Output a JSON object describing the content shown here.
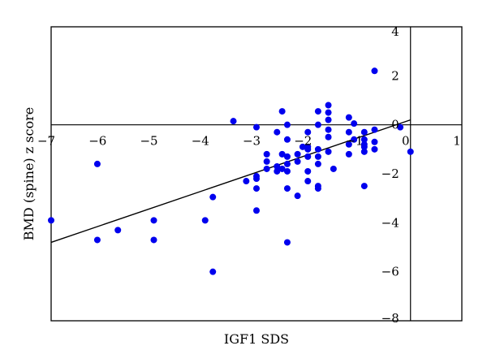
{
  "chart_data": {
    "type": "scatter",
    "title": "",
    "xlabel": "IGF1 SDS",
    "ylabel": "BMD (spine) z score",
    "xlim": [
      -7,
      1
    ],
    "ylim": [
      -8,
      4
    ],
    "xticks": [
      -7,
      -6,
      -5,
      -4,
      -3,
      -2,
      -1,
      0,
      1
    ],
    "yticks": [
      -8,
      -6,
      -4,
      -2,
      0,
      2,
      4
    ],
    "grid": false,
    "legend": "none",
    "point_color": "#0000ee",
    "line_color": "#000000",
    "regression_line": {
      "x": [
        -7,
        0
      ],
      "y": [
        -4.8,
        0.2
      ]
    },
    "series": [
      {
        "points": [
          [
            -7.0,
            -3.9
          ],
          [
            -6.1,
            -1.6
          ],
          [
            -6.1,
            -4.7
          ],
          [
            -5.7,
            -4.3
          ],
          [
            -5.0,
            -3.9
          ],
          [
            -5.0,
            -4.7
          ],
          [
            -4.0,
            -3.9
          ],
          [
            -3.85,
            -2.95
          ],
          [
            -3.85,
            -6.0
          ],
          [
            -3.45,
            0.15
          ],
          [
            -3.2,
            -2.3
          ],
          [
            -3.0,
            -0.1
          ],
          [
            -3.0,
            -2.1
          ],
          [
            -3.0,
            -2.2
          ],
          [
            -3.0,
            -2.6
          ],
          [
            -3.0,
            -3.5
          ],
          [
            -2.8,
            -1.2
          ],
          [
            -2.8,
            -1.5
          ],
          [
            -2.8,
            -1.8
          ],
          [
            -2.6,
            -0.3
          ],
          [
            -2.6,
            -1.7
          ],
          [
            -2.6,
            -1.9
          ],
          [
            -2.5,
            0.55
          ],
          [
            -2.5,
            -1.2
          ],
          [
            -2.5,
            -1.8
          ],
          [
            -2.4,
            0.0
          ],
          [
            -2.4,
            -0.6
          ],
          [
            -2.4,
            -1.3
          ],
          [
            -2.4,
            -1.6
          ],
          [
            -2.4,
            -1.9
          ],
          [
            -2.4,
            -2.6
          ],
          [
            -2.4,
            -4.8
          ],
          [
            -2.2,
            -1.2
          ],
          [
            -2.2,
            -1.5
          ],
          [
            -2.2,
            -2.9
          ],
          [
            -2.1,
            -0.9
          ],
          [
            -2.0,
            -0.3
          ],
          [
            -2.0,
            -0.9
          ],
          [
            -2.0,
            -1.0
          ],
          [
            -2.0,
            -1.3
          ],
          [
            -2.0,
            -1.9
          ],
          [
            -2.0,
            -2.3
          ],
          [
            -1.8,
            0.0
          ],
          [
            -1.8,
            0.55
          ],
          [
            -1.8,
            -1.0
          ],
          [
            -1.8,
            -1.3
          ],
          [
            -1.8,
            -1.6
          ],
          [
            -1.8,
            -2.5
          ],
          [
            -1.8,
            -2.6
          ],
          [
            -1.6,
            0.8
          ],
          [
            -1.6,
            0.5
          ],
          [
            -1.6,
            0.2
          ],
          [
            -1.6,
            -0.2
          ],
          [
            -1.6,
            -0.5
          ],
          [
            -1.6,
            -1.1
          ],
          [
            -1.5,
            -1.8
          ],
          [
            -1.2,
            0.3
          ],
          [
            -1.2,
            -0.3
          ],
          [
            -1.2,
            -0.8
          ],
          [
            -1.2,
            -1.2
          ],
          [
            -1.1,
            0.05
          ],
          [
            -1.1,
            -0.6
          ],
          [
            -0.9,
            -0.3
          ],
          [
            -0.9,
            -0.6
          ],
          [
            -0.9,
            -0.9
          ],
          [
            -0.9,
            -1.1
          ],
          [
            -0.9,
            -2.5
          ],
          [
            -0.9,
            -0.8
          ],
          [
            -0.7,
            2.2
          ],
          [
            -0.7,
            -0.2
          ],
          [
            -0.7,
            -0.7
          ],
          [
            -0.7,
            -1.0
          ],
          [
            -0.2,
            -0.1
          ],
          [
            0.0,
            -1.1
          ]
        ]
      }
    ]
  }
}
